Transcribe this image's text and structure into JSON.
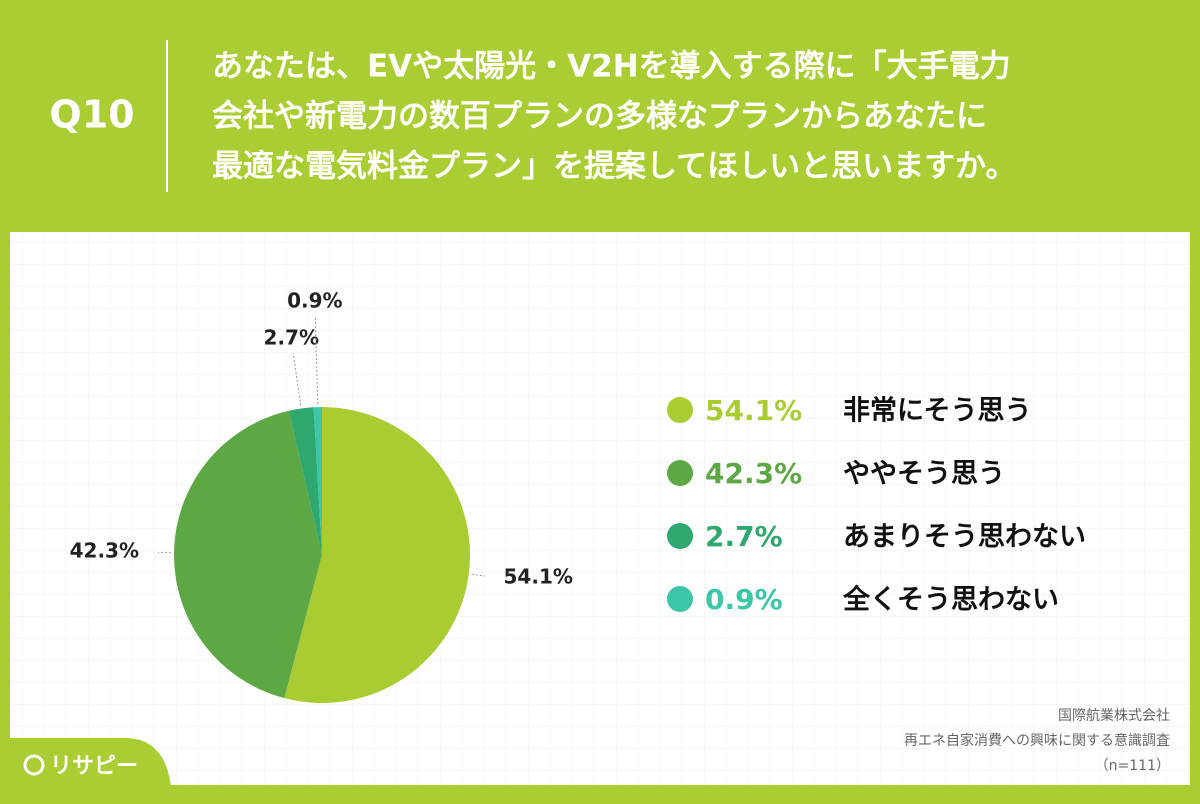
{
  "question": "Q10",
  "chart_data": {
    "type": "pie",
    "title": [
      "あなたは、EVや太陽光・V2Hを導入する際に「大手電力",
      "会社や新電力の数百プランの多様なプランからあなたに",
      "最適な電気料金プラン」を提案してほしいと思いますか。"
    ],
    "categories": [
      "非常にそう思う",
      "ややそう思う",
      "あまりそう思わない",
      "全くそう思わない"
    ],
    "values": [
      54.1,
      42.3,
      2.7,
      0.9
    ],
    "value_labels": [
      "54.1%",
      "42.3%",
      "2.7%",
      "0.9%"
    ],
    "colors": [
      "#a8cc32",
      "#5ea745",
      "#2ea86e",
      "#3cc6a8"
    ]
  },
  "source": [
    "国際航業株式会社",
    "再エネ自家消費への興味に関する意識調査",
    "（n=111）"
  ],
  "logo": "リサピー"
}
